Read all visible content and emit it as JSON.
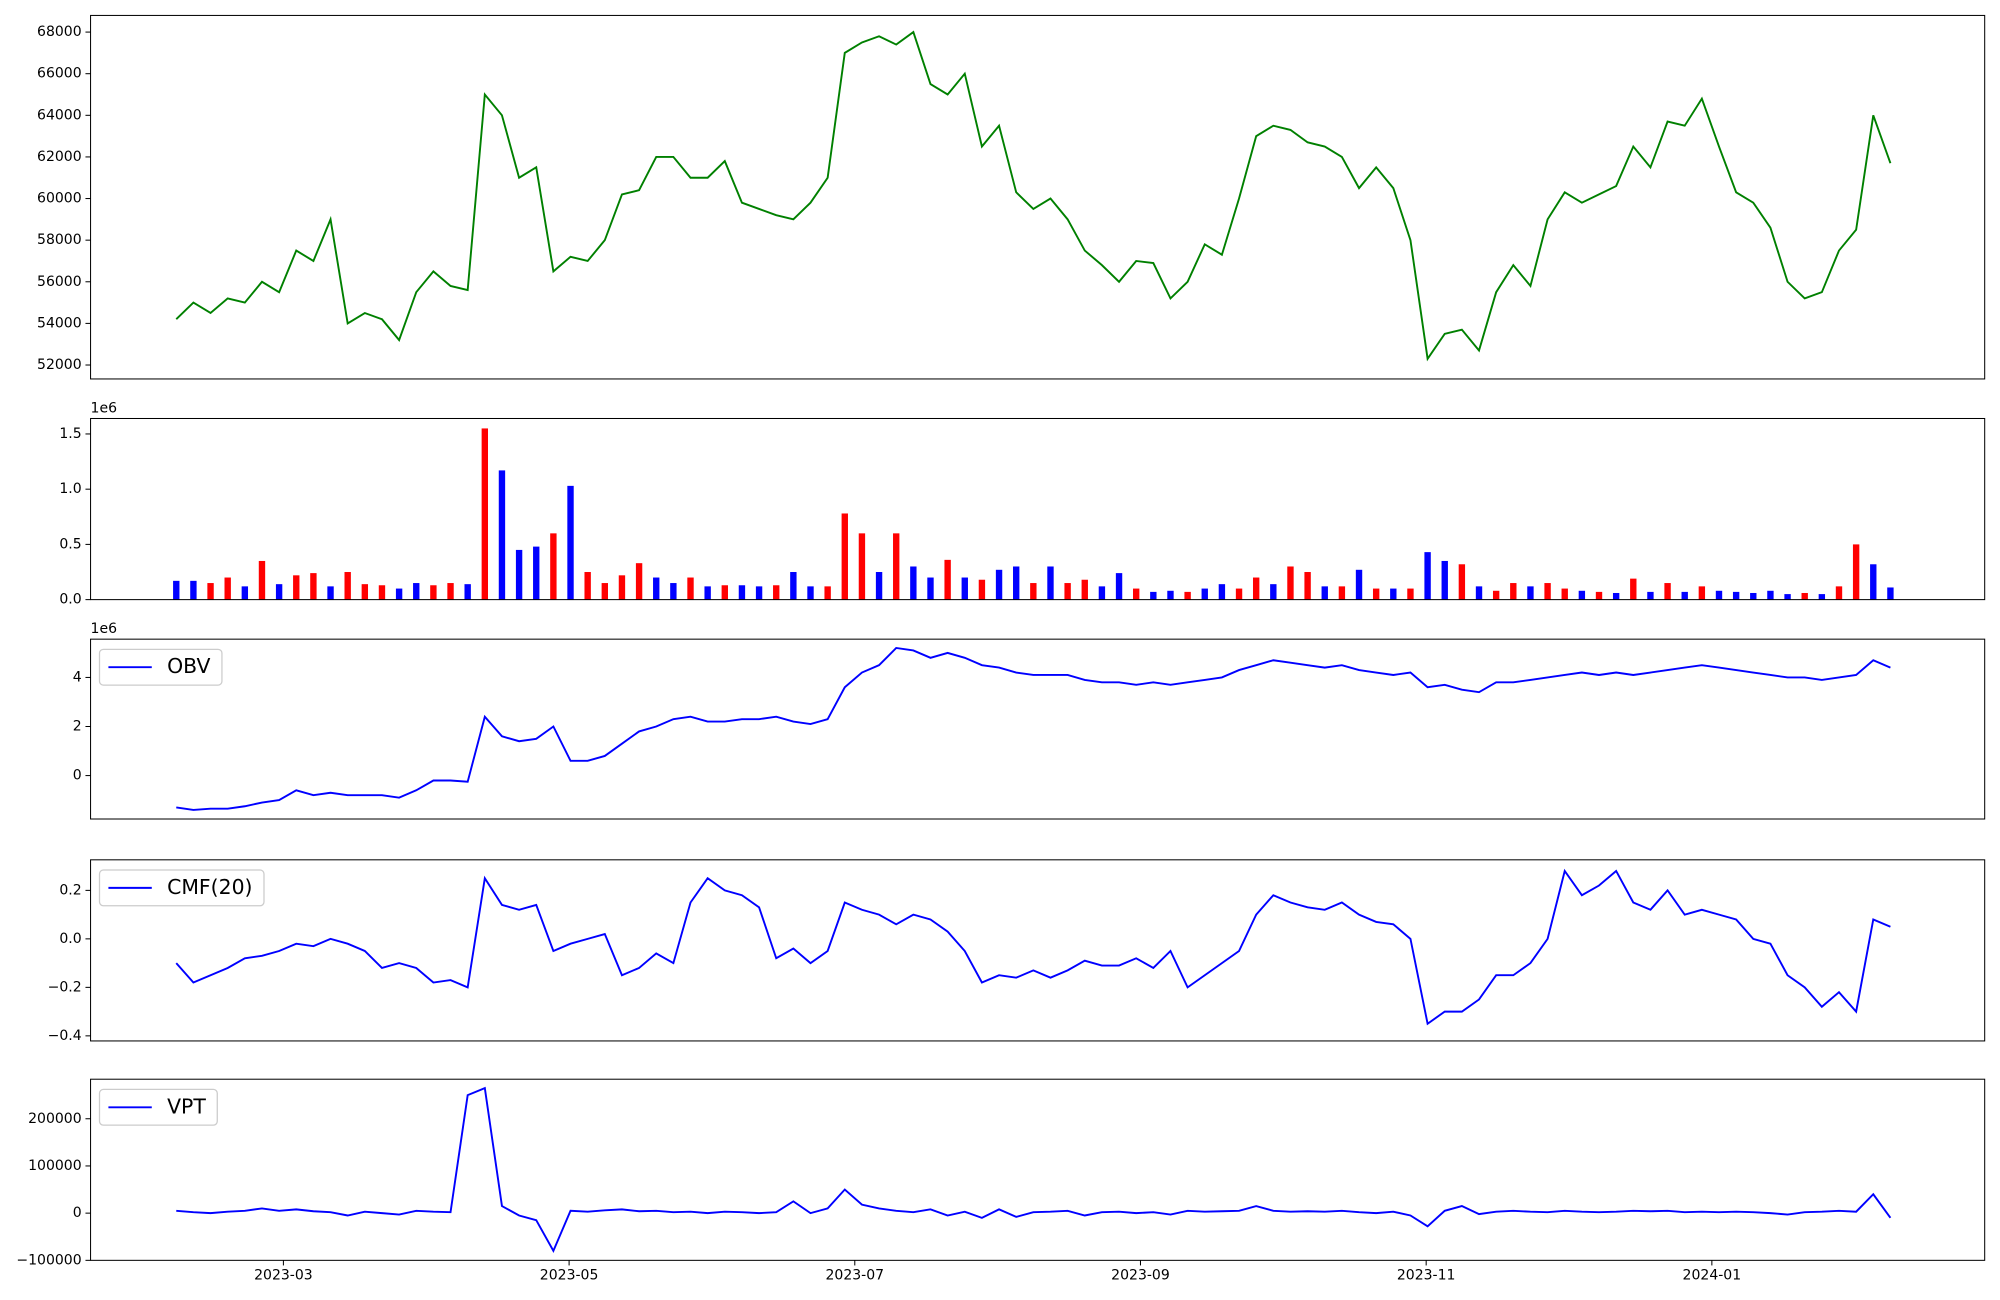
{
  "chart_data": [
    {
      "type": "line",
      "color": "green",
      "x": [
        0.25,
        0.37,
        0.49,
        0.61,
        0.73,
        0.85,
        0.97,
        1.09,
        1.21,
        1.33,
        1.45,
        1.57,
        1.69,
        1.81,
        1.93,
        2.05,
        2.17,
        2.29,
        2.41,
        2.53,
        2.65,
        2.77,
        2.89,
        3.01,
        3.13,
        3.25,
        3.37,
        3.49,
        3.61,
        3.73,
        3.85,
        3.97,
        4.09,
        4.21,
        4.33,
        4.45,
        4.57,
        4.69,
        4.81,
        4.93,
        5.05,
        5.17,
        5.29,
        5.41,
        5.53,
        5.65,
        5.77,
        5.89,
        6.01,
        6.13,
        6.25,
        6.37,
        6.49,
        6.61,
        6.73,
        6.85,
        6.97,
        7.09,
        7.21,
        7.33,
        7.45,
        7.57,
        7.69,
        7.81,
        7.93,
        8.05,
        8.17,
        8.29,
        8.41,
        8.53,
        8.65,
        8.77,
        8.89,
        9.01,
        9.13,
        9.25,
        9.37,
        9.49,
        9.61,
        9.73,
        9.85,
        9.97,
        10.09,
        10.21,
        10.33,
        10.45,
        10.57,
        10.69,
        10.81,
        10.93,
        11.05,
        11.17,
        11.29,
        11.41,
        11.53,
        11.65,
        11.77,
        11.89,
        12.01,
        12.13,
        12.25
      ],
      "values": [
        54200,
        55000,
        54500,
        55200,
        55000,
        56000,
        55500,
        57500,
        57000,
        59000,
        54000,
        54500,
        54200,
        53200,
        55500,
        56500,
        55800,
        55600,
        65000,
        64000,
        61000,
        61500,
        56500,
        57200,
        57000,
        58000,
        60200,
        60400,
        62000,
        62000,
        61000,
        61000,
        61800,
        59800,
        59500,
        59200,
        59000,
        59800,
        61000,
        67000,
        67500,
        67800,
        67400,
        68000,
        65500,
        65000,
        66000,
        62500,
        63500,
        60300,
        59500,
        60000,
        59000,
        57500,
        56800,
        56000,
        57000,
        56900,
        55200,
        56000,
        57800,
        57300,
        60000,
        63000,
        63500,
        63300,
        62700,
        62500,
        62000,
        60500,
        61500,
        60500,
        58000,
        52300,
        53500,
        53700,
        52700,
        55500,
        56800,
        55800,
        59000,
        60300,
        59800,
        60200,
        60600,
        62500,
        61500,
        63700,
        63500,
        64800,
        62500,
        60300,
        59800,
        58600,
        56000,
        55200,
        55500,
        57500,
        58500,
        64000,
        61700
      ],
      "xlim": [
        -0.35,
        12.91
      ],
      "ylim": [
        51330,
        68800
      ],
      "yticks": [
        52000,
        54000,
        56000,
        58000,
        60000,
        62000,
        64000,
        66000,
        68000
      ]
    },
    {
      "type": "bar",
      "offset_label": "1e6",
      "x": [
        0.25,
        0.37,
        0.49,
        0.61,
        0.73,
        0.85,
        0.97,
        1.09,
        1.21,
        1.33,
        1.45,
        1.57,
        1.69,
        1.81,
        1.93,
        2.05,
        2.17,
        2.29,
        2.41,
        2.53,
        2.65,
        2.77,
        2.89,
        3.01,
        3.13,
        3.25,
        3.37,
        3.49,
        3.61,
        3.73,
        3.85,
        3.97,
        4.09,
        4.21,
        4.33,
        4.45,
        4.57,
        4.69,
        4.81,
        4.93,
        5.05,
        5.17,
        5.29,
        5.41,
        5.53,
        5.65,
        5.77,
        5.89,
        6.01,
        6.13,
        6.25,
        6.37,
        6.49,
        6.61,
        6.73,
        6.85,
        6.97,
        7.09,
        7.21,
        7.33,
        7.45,
        7.57,
        7.69,
        7.81,
        7.93,
        8.05,
        8.17,
        8.29,
        8.41,
        8.53,
        8.65,
        8.77,
        8.89,
        9.01,
        9.13,
        9.25,
        9.37,
        9.49,
        9.61,
        9.73,
        9.85,
        9.97,
        10.09,
        10.21,
        10.33,
        10.45,
        10.57,
        10.69,
        10.81,
        10.93,
        11.05,
        11.17,
        11.29,
        11.41,
        11.53,
        11.65,
        11.77,
        11.89,
        12.01,
        12.13,
        12.25
      ],
      "values": [
        0.17,
        0.17,
        0.15,
        0.2,
        0.12,
        0.35,
        0.14,
        0.22,
        0.24,
        0.12,
        0.25,
        0.14,
        0.13,
        0.1,
        0.15,
        0.13,
        0.15,
        0.14,
        1.55,
        1.17,
        0.45,
        0.48,
        0.6,
        1.03,
        0.25,
        0.15,
        0.22,
        0.33,
        0.2,
        0.15,
        0.2,
        0.12,
        0.13,
        0.13,
        0.12,
        0.13,
        0.25,
        0.12,
        0.12,
        0.78,
        0.6,
        0.25,
        0.6,
        0.3,
        0.2,
        0.36,
        0.2,
        0.18,
        0.27,
        0.3,
        0.15,
        0.3,
        0.15,
        0.18,
        0.12,
        0.24,
        0.1,
        0.07,
        0.08,
        0.07,
        0.1,
        0.14,
        0.1,
        0.2,
        0.14,
        0.3,
        0.25,
        0.12,
        0.12,
        0.27,
        0.1,
        0.1,
        0.1,
        0.43,
        0.35,
        0.32,
        0.12,
        0.08,
        0.15,
        0.12,
        0.15,
        0.1,
        0.08,
        0.07,
        0.06,
        0.19,
        0.07,
        0.15,
        0.07,
        0.12,
        0.08,
        0.07,
        0.06,
        0.08,
        0.05,
        0.06,
        0.05,
        0.12,
        0.5,
        0.32,
        0.11
      ],
      "colors": [
        "blue",
        "blue",
        "red",
        "red",
        "blue",
        "red",
        "blue",
        "red",
        "red",
        "blue",
        "red",
        "red",
        "red",
        "blue",
        "blue",
        "red",
        "red",
        "blue",
        "red",
        "blue",
        "blue",
        "blue",
        "red",
        "blue",
        "red",
        "red",
        "red",
        "red",
        "blue",
        "blue",
        "red",
        "blue",
        "red",
        "blue",
        "blue",
        "red",
        "blue",
        "blue",
        "red",
        "red",
        "red",
        "blue",
        "red",
        "blue",
        "blue",
        "red",
        "blue",
        "red",
        "blue",
        "blue",
        "red",
        "blue",
        "red",
        "red",
        "blue",
        "blue",
        "red",
        "blue",
        "blue",
        "red",
        "blue",
        "blue",
        "red",
        "red",
        "blue",
        "red",
        "red",
        "blue",
        "red",
        "blue",
        "red",
        "blue",
        "red",
        "blue",
        "blue",
        "red",
        "blue",
        "red",
        "red",
        "blue",
        "red",
        "red",
        "blue",
        "red",
        "blue",
        "red",
        "blue",
        "red",
        "blue",
        "red",
        "blue",
        "blue",
        "blue",
        "blue",
        "blue",
        "red",
        "blue",
        "red",
        "red",
        "blue",
        "blue"
      ],
      "xlim": [
        -0.35,
        12.91
      ],
      "ylim": [
        0,
        1.64
      ],
      "yticks": [
        {
          "value": 0,
          "label": "0.0"
        },
        0.5,
        {
          "value": 1,
          "label": "1.0"
        },
        1.5
      ]
    },
    {
      "type": "line",
      "offset_label": "1e6",
      "legend": "upper left",
      "x": [
        0.25,
        0.37,
        0.49,
        0.61,
        0.73,
        0.85,
        0.97,
        1.09,
        1.21,
        1.33,
        1.45,
        1.57,
        1.69,
        1.81,
        1.93,
        2.05,
        2.17,
        2.29,
        2.41,
        2.53,
        2.65,
        2.77,
        2.89,
        3.01,
        3.13,
        3.25,
        3.37,
        3.49,
        3.61,
        3.73,
        3.85,
        3.97,
        4.09,
        4.21,
        4.33,
        4.45,
        4.57,
        4.69,
        4.81,
        4.93,
        5.05,
        5.17,
        5.29,
        5.41,
        5.53,
        5.65,
        5.77,
        5.89,
        6.01,
        6.13,
        6.25,
        6.37,
        6.49,
        6.61,
        6.73,
        6.85,
        6.97,
        7.09,
        7.21,
        7.33,
        7.45,
        7.57,
        7.69,
        7.81,
        7.93,
        8.05,
        8.17,
        8.29,
        8.41,
        8.53,
        8.65,
        8.77,
        8.89,
        9.01,
        9.13,
        9.25,
        9.37,
        9.49,
        9.61,
        9.73,
        9.85,
        9.97,
        10.09,
        10.21,
        10.33,
        10.45,
        10.57,
        10.69,
        10.81,
        10.93,
        11.05,
        11.17,
        11.29,
        11.41,
        11.53,
        11.65,
        11.77,
        11.89,
        12.01,
        12.13,
        12.25
      ],
      "series": [
        {
          "name": "OBV",
          "color": "blue",
          "values": [
            -1.3,
            -1.4,
            -1.35,
            -1.35,
            -1.25,
            -1.1,
            -1.0,
            -0.6,
            -0.8,
            -0.7,
            -0.8,
            -0.8,
            -0.8,
            -0.9,
            -0.6,
            -0.2,
            -0.2,
            -0.25,
            2.4,
            1.6,
            1.4,
            1.5,
            2.0,
            0.6,
            0.6,
            0.8,
            1.3,
            1.8,
            2.0,
            2.3,
            2.4,
            2.2,
            2.2,
            2.3,
            2.3,
            2.4,
            2.2,
            2.1,
            2.3,
            3.6,
            4.2,
            4.5,
            5.2,
            5.1,
            4.8,
            5.0,
            4.8,
            4.5,
            4.4,
            4.2,
            4.1,
            4.1,
            4.1,
            3.9,
            3.8,
            3.8,
            3.7,
            3.8,
            3.7,
            3.8,
            3.9,
            4.0,
            4.3,
            4.5,
            4.7,
            4.6,
            4.5,
            4.4,
            4.5,
            4.3,
            4.2,
            4.1,
            4.2,
            3.6,
            3.7,
            3.5,
            3.4,
            3.8,
            3.8,
            3.9,
            4.0,
            4.1,
            4.2,
            4.1,
            4.2,
            4.1,
            4.2,
            4.3,
            4.4,
            4.5,
            4.4,
            4.3,
            4.2,
            4.1,
            4.0,
            4.0,
            3.9,
            4.0,
            4.1,
            4.7,
            4.4
          ]
        }
      ],
      "xlim": [
        -0.35,
        12.91
      ],
      "ylim": [
        -1.77,
        5.56
      ],
      "yticks": [
        0,
        2,
        4
      ]
    },
    {
      "type": "line",
      "legend": "upper left",
      "x": [
        0.25,
        0.37,
        0.49,
        0.61,
        0.73,
        0.85,
        0.97,
        1.09,
        1.21,
        1.33,
        1.45,
        1.57,
        1.69,
        1.81,
        1.93,
        2.05,
        2.17,
        2.29,
        2.41,
        2.53,
        2.65,
        2.77,
        2.89,
        3.01,
        3.13,
        3.25,
        3.37,
        3.49,
        3.61,
        3.73,
        3.85,
        3.97,
        4.09,
        4.21,
        4.33,
        4.45,
        4.57,
        4.69,
        4.81,
        4.93,
        5.05,
        5.17,
        5.29,
        5.41,
        5.53,
        5.65,
        5.77,
        5.89,
        6.01,
        6.13,
        6.25,
        6.37,
        6.49,
        6.61,
        6.73,
        6.85,
        6.97,
        7.09,
        7.21,
        7.33,
        7.45,
        7.57,
        7.69,
        7.81,
        7.93,
        8.05,
        8.17,
        8.29,
        8.41,
        8.53,
        8.65,
        8.77,
        8.89,
        9.01,
        9.13,
        9.25,
        9.37,
        9.49,
        9.61,
        9.73,
        9.85,
        9.97,
        10.09,
        10.21,
        10.33,
        10.45,
        10.57,
        10.69,
        10.81,
        10.93,
        11.05,
        11.17,
        11.29,
        11.41,
        11.53,
        11.65,
        11.77,
        11.89,
        12.01,
        12.13,
        12.25
      ],
      "series": [
        {
          "name": "CMF(20)",
          "color": "blue",
          "values": [
            -0.1,
            -0.18,
            -0.15,
            -0.12,
            -0.08,
            -0.07,
            -0.05,
            -0.02,
            -0.03,
            0.0,
            -0.02,
            -0.05,
            -0.12,
            -0.1,
            -0.12,
            -0.18,
            -0.17,
            -0.2,
            0.25,
            0.14,
            0.12,
            0.14,
            -0.05,
            -0.02,
            0.0,
            0.02,
            -0.15,
            -0.12,
            -0.06,
            -0.1,
            0.15,
            0.25,
            0.2,
            0.18,
            0.13,
            -0.08,
            -0.04,
            -0.1,
            -0.05,
            0.15,
            0.12,
            0.1,
            0.06,
            0.1,
            0.08,
            0.03,
            -0.05,
            -0.18,
            -0.15,
            -0.16,
            -0.13,
            -0.16,
            -0.13,
            -0.09,
            -0.11,
            -0.11,
            -0.08,
            -0.12,
            -0.05,
            -0.2,
            -0.15,
            -0.1,
            -0.05,
            0.1,
            0.18,
            0.15,
            0.13,
            0.12,
            0.15,
            0.1,
            0.07,
            0.06,
            0.0,
            -0.35,
            -0.3,
            -0.3,
            -0.25,
            -0.15,
            -0.15,
            -0.1,
            0.0,
            0.28,
            0.18,
            0.22,
            0.28,
            0.15,
            0.12,
            0.2,
            0.1,
            0.12,
            0.1,
            0.08,
            0.0,
            -0.02,
            -0.15,
            -0.2,
            -0.28,
            -0.22,
            -0.3,
            0.08,
            0.05
          ]
        }
      ],
      "xlim": [
        -0.35,
        12.91
      ],
      "ylim": [
        -0.421,
        0.326
      ],
      "yticks": [
        {
          "value": -0.4,
          "label": "−0.4"
        },
        {
          "value": -0.2,
          "label": "−0.2"
        },
        {
          "value": 0,
          "label": "0.0"
        },
        0.2
      ]
    },
    {
      "type": "line",
      "legend": "upper left",
      "x": [
        0.25,
        0.37,
        0.49,
        0.61,
        0.73,
        0.85,
        0.97,
        1.09,
        1.21,
        1.33,
        1.45,
        1.57,
        1.69,
        1.81,
        1.93,
        2.05,
        2.17,
        2.29,
        2.41,
        2.53,
        2.65,
        2.77,
        2.89,
        3.01,
        3.13,
        3.25,
        3.37,
        3.49,
        3.61,
        3.73,
        3.85,
        3.97,
        4.09,
        4.21,
        4.33,
        4.45,
        4.57,
        4.69,
        4.81,
        4.93,
        5.05,
        5.17,
        5.29,
        5.41,
        5.53,
        5.65,
        5.77,
        5.89,
        6.01,
        6.13,
        6.25,
        6.37,
        6.49,
        6.61,
        6.73,
        6.85,
        6.97,
        7.09,
        7.21,
        7.33,
        7.45,
        7.57,
        7.69,
        7.81,
        7.93,
        8.05,
        8.17,
        8.29,
        8.41,
        8.53,
        8.65,
        8.77,
        8.89,
        9.01,
        9.13,
        9.25,
        9.37,
        9.49,
        9.61,
        9.73,
        9.85,
        9.97,
        10.09,
        10.21,
        10.33,
        10.45,
        10.57,
        10.69,
        10.81,
        10.93,
        11.05,
        11.17,
        11.29,
        11.41,
        11.53,
        11.65,
        11.77,
        11.89,
        12.01,
        12.13,
        12.25
      ],
      "series": [
        {
          "name": "VPT",
          "color": "blue",
          "values": [
            5000,
            2000,
            0,
            3000,
            5000,
            10000,
            5000,
            8000,
            4000,
            2000,
            -5000,
            3000,
            0,
            -3000,
            5000,
            3000,
            2000,
            250000,
            265000,
            15000,
            -5000,
            -15000,
            -80000,
            5000,
            3000,
            6000,
            8000,
            4000,
            5000,
            2000,
            3000,
            0,
            3000,
            2000,
            0,
            2000,
            25000,
            0,
            10000,
            50000,
            18000,
            10000,
            5000,
            2000,
            8000,
            -5000,
            3000,
            -10000,
            8000,
            -8000,
            2000,
            3000,
            5000,
            -5000,
            2000,
            3000,
            0,
            2000,
            -3000,
            5000,
            3000,
            4000,
            5000,
            15000,
            5000,
            3000,
            4000,
            3000,
            5000,
            2000,
            0,
            3000,
            -5000,
            -28000,
            5000,
            15000,
            -2000,
            3000,
            5000,
            3000,
            2000,
            5000,
            3000,
            2000,
            3000,
            5000,
            4000,
            5000,
            2000,
            3000,
            2000,
            3000,
            2000,
            0,
            -3000,
            2000,
            3000,
            5000,
            3000,
            40000,
            -10000
          ]
        }
      ],
      "xlim": [
        -0.35,
        12.91
      ],
      "ylim": [
        -100000,
        283800
      ],
      "yticks": [
        {
          "value": -100000,
          "label": "−100000"
        },
        0,
        100000,
        200000
      ],
      "xticks": [
        {
          "value": 1,
          "label": "2023-03"
        },
        {
          "value": 3,
          "label": "2023-05"
        },
        {
          "value": 5,
          "label": "2023-07"
        },
        {
          "value": 7,
          "label": "2023-09"
        },
        {
          "value": 9,
          "label": "2023-11"
        },
        {
          "value": 11,
          "label": "2024-01"
        }
      ]
    }
  ]
}
